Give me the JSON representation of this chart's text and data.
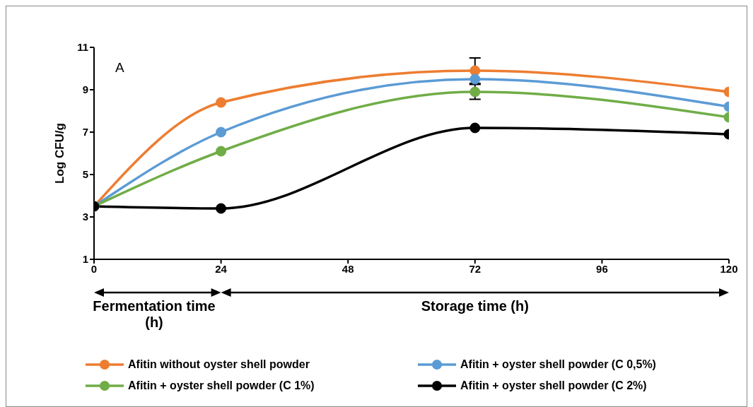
{
  "chart_data": {
    "type": "line",
    "ylabel": "Log CFU/g",
    "x": [
      0,
      24,
      72,
      120
    ],
    "series": [
      {
        "name": "Afitin without oyster shell powder",
        "color": "#ed7d31",
        "values": [
          3.5,
          8.4,
          9.9,
          8.9
        ],
        "errors": [
          null,
          null,
          0.6,
          null
        ]
      },
      {
        "name": "Afitin + oyster shell powder (C 0,5%)",
        "color": "#5b9bd5",
        "values": [
          3.5,
          7.0,
          9.5,
          8.2
        ]
      },
      {
        "name": "Afitin + oyster shell powder (C 1%)",
        "color": "#70ad47",
        "values": [
          3.5,
          6.1,
          8.9,
          7.7
        ],
        "errors": [
          null,
          null,
          0.35,
          null
        ]
      },
      {
        "name": "Afitin + oyster shell powder (C 2%)",
        "color": "#000000",
        "values": [
          3.5,
          3.4,
          7.2,
          6.9
        ]
      }
    ],
    "xlim": [
      0,
      120
    ],
    "xticks": [
      0,
      24,
      48,
      72,
      96,
      120
    ],
    "ylim": [
      1,
      11
    ],
    "yticks": [
      1,
      3,
      5,
      7,
      9,
      11
    ],
    "grid": false,
    "legend": "bottom",
    "marker": "circle",
    "line_style": "solid",
    "annotations": [
      "A",
      "Fermentation time (h)",
      "Storage time (h)"
    ]
  }
}
